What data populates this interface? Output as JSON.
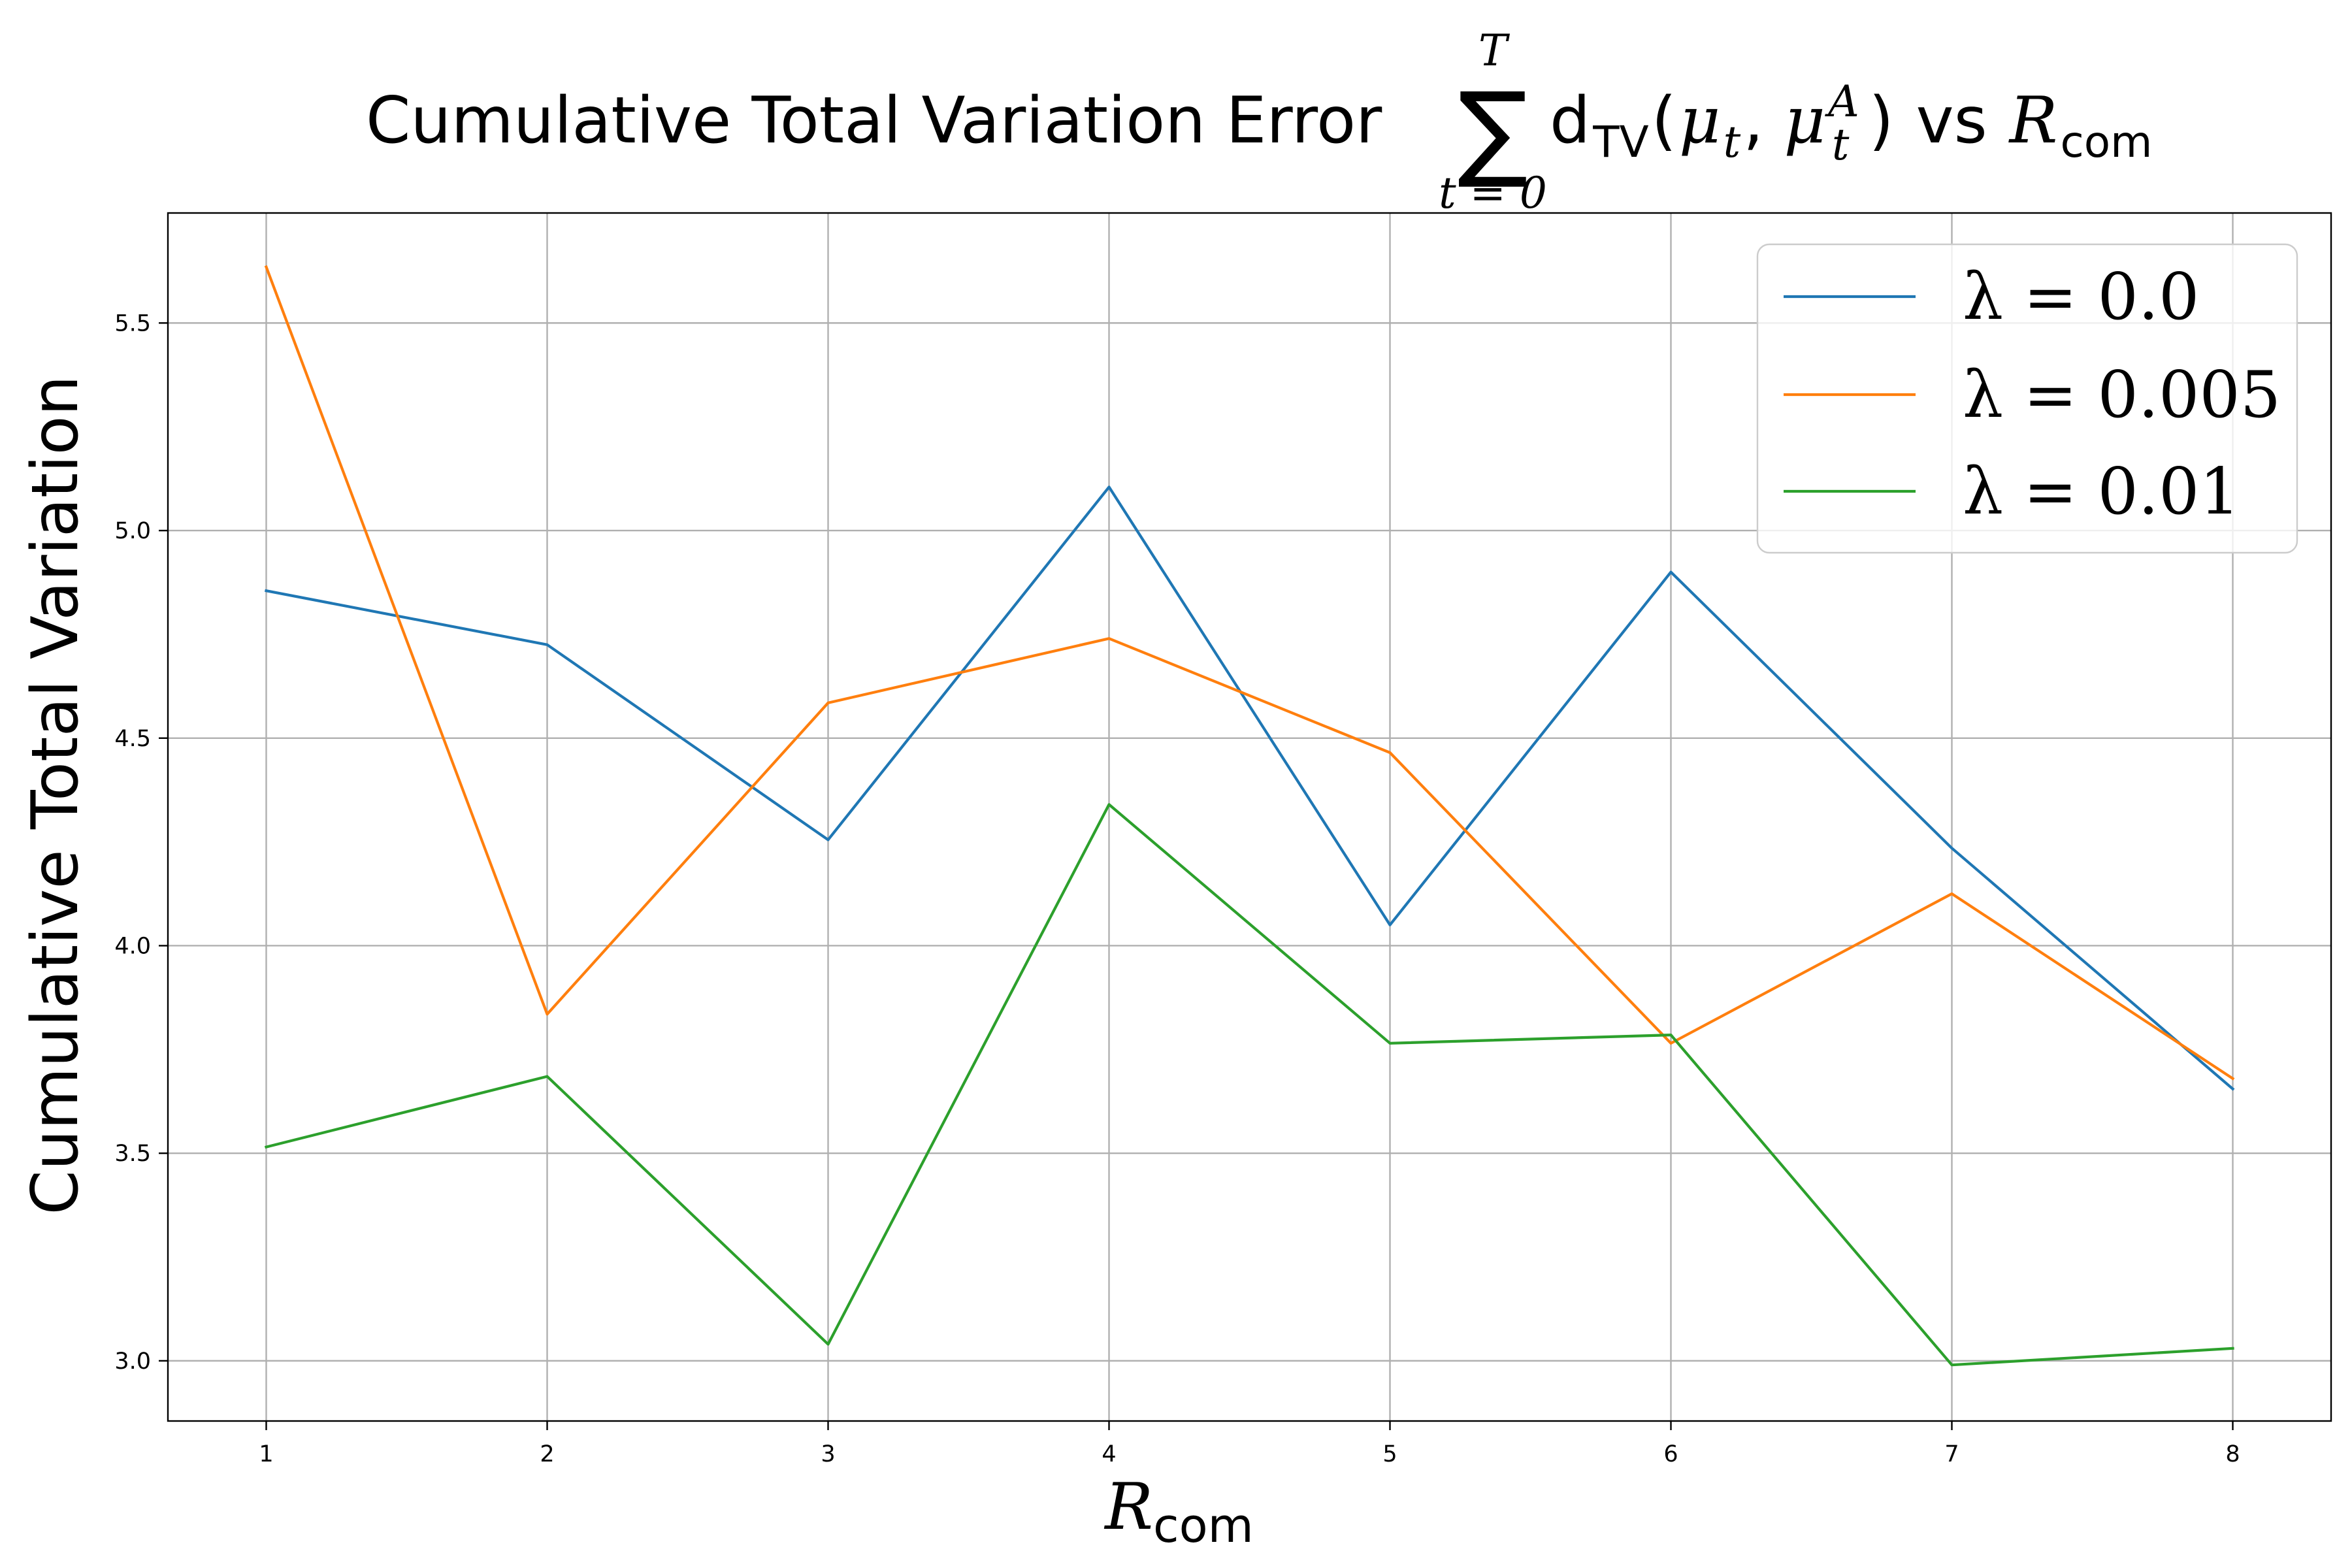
{
  "chart_data": {
    "type": "line",
    "title_parts": {
      "prefix": "Cumulative Total Variation Error",
      "sum_symbol": "∑",
      "sum_upper": "T",
      "sum_lower": "t = 0",
      "dtv": "d",
      "dtv_sub": "TV",
      "open_paren": "(",
      "mu": "μ",
      "mu_sub": "t",
      "comma": ", ",
      "mu2": "μ",
      "mu2_sup": "A",
      "mu2_sub": "t",
      "close_paren": ")",
      "vs": "vs",
      "r": "R",
      "r_sub": "com"
    },
    "xlabel": {
      "main": "R",
      "sub": "com"
    },
    "ylabel": "Cumulative Total Variation",
    "x": [
      1,
      2,
      3,
      4,
      5,
      6,
      7,
      8
    ],
    "xlim": [
      0.65,
      8.35
    ],
    "ylim": [
      2.855,
      5.765
    ],
    "xticks": [
      "1",
      "2",
      "3",
      "4",
      "5",
      "6",
      "7",
      "8"
    ],
    "yticks": [
      "3.0",
      "3.5",
      "4.0",
      "4.5",
      "5.0",
      "5.5"
    ],
    "grid": true,
    "legend_position": "top-right",
    "series": [
      {
        "name": "λ = 0.0",
        "color": "#1f77b4",
        "values": [
          4.855,
          4.725,
          4.255,
          5.105,
          4.05,
          4.9,
          4.235,
          3.655
        ]
      },
      {
        "name": "λ = 0.005",
        "color": "#ff7f0e",
        "values": [
          5.635,
          3.835,
          4.585,
          4.74,
          4.465,
          3.765,
          4.125,
          3.68
        ]
      },
      {
        "name": "λ = 0.01",
        "color": "#2ca02c",
        "values": [
          3.515,
          3.685,
          3.04,
          4.34,
          3.765,
          3.785,
          2.99,
          3.03
        ]
      }
    ]
  }
}
